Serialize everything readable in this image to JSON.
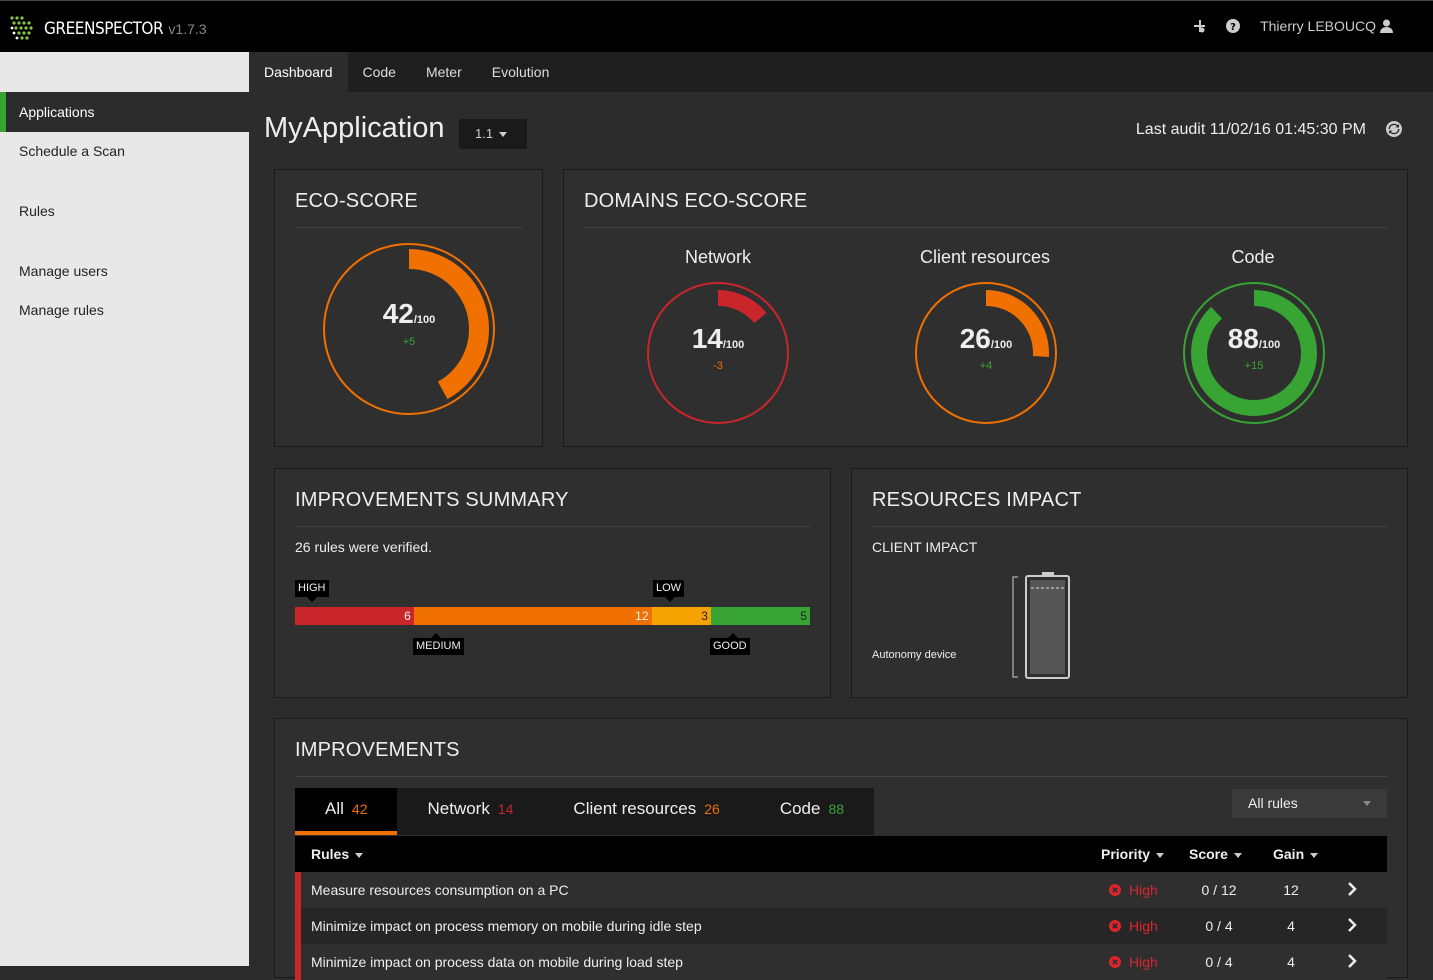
{
  "topbar": {
    "brand": "GREENSPECTOR",
    "version": "v1.7.3",
    "user": "Thierry LEBOUCQ",
    "icons": [
      "plugin-icon",
      "help-icon",
      "user-icon"
    ]
  },
  "sidebar": {
    "items": [
      {
        "label": "Applications",
        "active": true
      },
      {
        "label": "Schedule a Scan"
      },
      {
        "label": "Rules"
      },
      {
        "label": "Manage users"
      },
      {
        "label": "Manage rules"
      }
    ]
  },
  "nav": {
    "tabs": [
      {
        "label": "Dashboard",
        "active": true
      },
      {
        "label": "Code"
      },
      {
        "label": "Meter"
      },
      {
        "label": "Evolution"
      }
    ]
  },
  "header": {
    "app_name": "MyApplication",
    "version_select": "1.1",
    "last_audit": "Last audit 11/02/16 01:45:30 PM"
  },
  "eco_score": {
    "title": "ECO-SCORE",
    "value": "42",
    "max": "/100",
    "delta": "+5",
    "fraction": 0.42,
    "color": "#f07000",
    "delta_color": "#37a433"
  },
  "domains": {
    "title": "DOMAINS ECO-SCORE",
    "items": [
      {
        "label": "Network",
        "value": "14",
        "max": "/100",
        "delta": "-3",
        "fraction": 0.14,
        "color": "#c9262c",
        "delta_color": "#f07000"
      },
      {
        "label": "Client resources",
        "value": "26",
        "max": "/100",
        "delta": "+4",
        "fraction": 0.26,
        "color": "#f07000",
        "delta_color": "#37a433"
      },
      {
        "label": "Code",
        "value": "88",
        "max": "/100",
        "delta": "+15",
        "fraction": 0.88,
        "color": "#37a433",
        "delta_color": "#37a433"
      }
    ]
  },
  "summary": {
    "title": "IMPROVEMENTS SUMMARY",
    "text": "26 rules were verified.",
    "segments": [
      {
        "name": "HIGH",
        "count": "6",
        "color": "#c9262c"
      },
      {
        "name": "MEDIUM",
        "count": "12",
        "color": "#f07000"
      },
      {
        "name": "LOW",
        "count": "3",
        "color": "#f5a300"
      },
      {
        "name": "GOOD",
        "count": "5",
        "color": "#37a433"
      }
    ]
  },
  "resources": {
    "title": "RESOURCES IMPACT",
    "subtitle": "CLIENT IMPACT",
    "autonomy_label": "Autonomy device"
  },
  "improvements": {
    "title": "IMPROVEMENTS",
    "tabs": [
      {
        "label": "All",
        "count": "42",
        "color": "#f07000",
        "active": true
      },
      {
        "label": "Network",
        "count": "14",
        "color": "#c9262c"
      },
      {
        "label": "Client resources",
        "count": "26",
        "color": "#f07000"
      },
      {
        "label": "Code",
        "count": "88",
        "color": "#37a433"
      }
    ],
    "filter": "All rules",
    "columns": {
      "rules": "Rules",
      "priority": "Priority",
      "score": "Score",
      "gain": "Gain"
    },
    "rows": [
      {
        "rule": "Measure resources consumption on a PC",
        "priority": "High",
        "score": "0 / 12",
        "gain": "12"
      },
      {
        "rule": "Minimize impact on process memory on mobile during idle step",
        "priority": "High",
        "score": "0 / 4",
        "gain": "4"
      },
      {
        "rule": "Minimize impact on process data on mobile during load step",
        "priority": "High",
        "score": "0 / 4",
        "gain": "4"
      }
    ]
  }
}
